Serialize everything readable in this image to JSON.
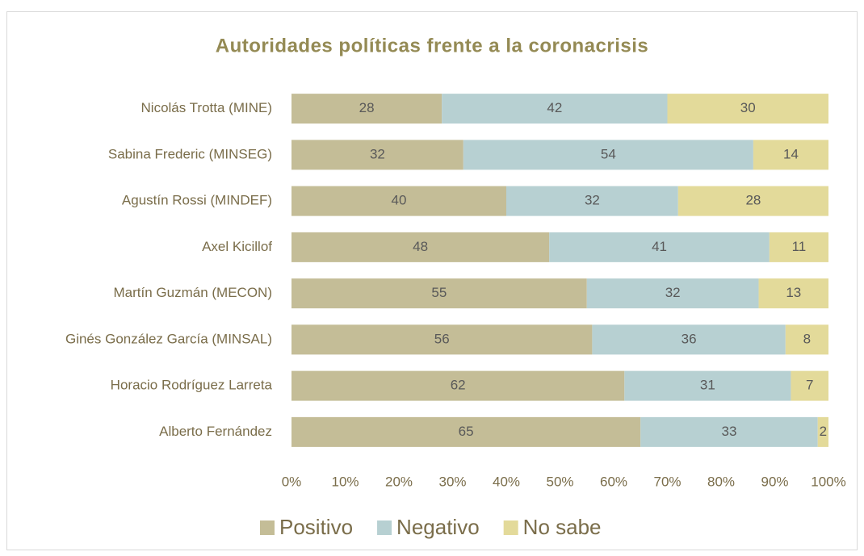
{
  "chart_data": {
    "type": "bar",
    "orientation": "horizontal",
    "stacked": true,
    "title": "Autoridades políticas frente a la coronacrisis",
    "categories": [
      "Nicolás Trotta (MINE)",
      "Sabina Frederic (MINSEG)",
      "Agustín Rossi (MINDEF)",
      "Axel Kicillof",
      "Martín Guzmán (MECON)",
      "Ginés González García (MINSAL)",
      "Horacio Rodríguez Larreta",
      "Alberto Fernández"
    ],
    "series": [
      {
        "name": "Positivo",
        "color": "#c4bd97",
        "values": [
          28,
          32,
          40,
          48,
          55,
          56,
          62,
          65
        ]
      },
      {
        "name": "Negativo",
        "color": "#b7d0d2",
        "values": [
          42,
          54,
          32,
          41,
          32,
          36,
          31,
          33
        ]
      },
      {
        "name": "No sabe",
        "color": "#e3da9a",
        "values": [
          30,
          14,
          28,
          11,
          13,
          8,
          7,
          2
        ]
      }
    ],
    "xlim": [
      0,
      100
    ],
    "xticks": [
      {
        "value": 0,
        "label": "0%"
      },
      {
        "value": 10,
        "label": "10%"
      },
      {
        "value": 20,
        "label": "20%"
      },
      {
        "value": 30,
        "label": "30%"
      },
      {
        "value": 40,
        "label": "40%"
      },
      {
        "value": 50,
        "label": "50%"
      },
      {
        "value": 60,
        "label": "60%"
      },
      {
        "value": 70,
        "label": "70%"
      },
      {
        "value": 80,
        "label": "80%"
      },
      {
        "value": 90,
        "label": "90%"
      },
      {
        "value": 100,
        "label": "100%"
      }
    ],
    "legend": "bottom",
    "grid": false
  }
}
